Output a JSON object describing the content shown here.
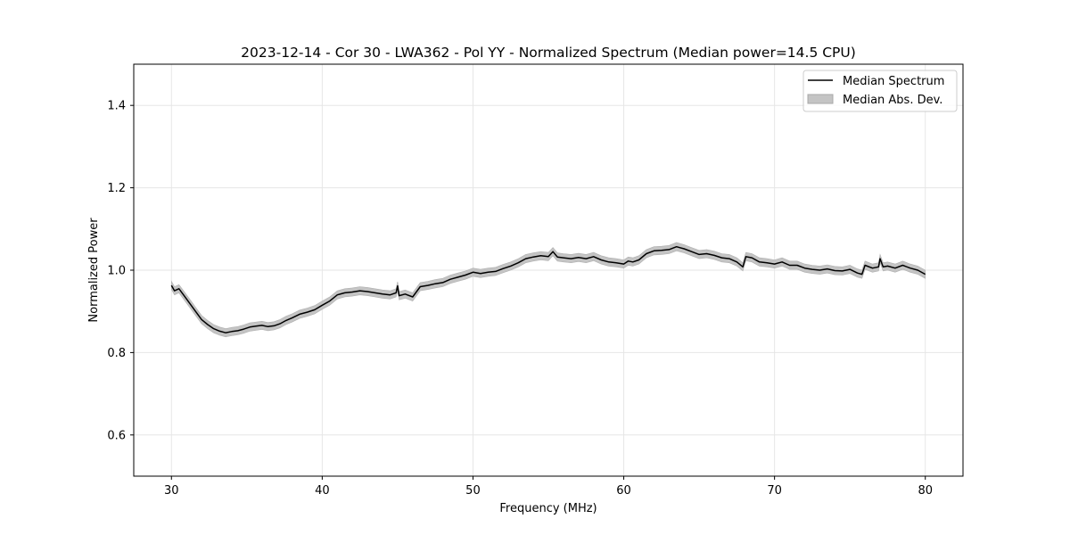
{
  "chart_data": {
    "type": "line",
    "title": "2023-12-14 - Cor 30 - LWA362 - Pol YY - Normalized Spectrum (Median power=14.5 CPU)",
    "xlabel": "Frequency (MHz)",
    "ylabel": "Normalized Power",
    "xlim": [
      27.5,
      82.5
    ],
    "ylim": [
      0.5,
      1.5
    ],
    "xticks": [
      30,
      40,
      50,
      60,
      70,
      80
    ],
    "xtick_labels": [
      "30",
      "40",
      "50",
      "60",
      "70",
      "80"
    ],
    "yticks": [
      0.6,
      0.8,
      1.0,
      1.2,
      1.4
    ],
    "ytick_labels": [
      "0.6",
      "0.8",
      "1.0",
      "1.2",
      "1.4"
    ],
    "grid": true,
    "legend_position": "top-right",
    "legend": [
      {
        "label": "Median Spectrum",
        "kind": "line",
        "color": "#000000"
      },
      {
        "label": "Median Abs. Dev.",
        "kind": "band",
        "color": "#a8a8a8"
      }
    ],
    "series": [
      {
        "name": "Median Spectrum",
        "mad": 0.01,
        "x": [
          30.0,
          30.2,
          30.5,
          30.8,
          31.0,
          31.3,
          31.6,
          32.0,
          32.4,
          32.8,
          33.2,
          33.6,
          34.0,
          34.4,
          34.8,
          35.2,
          35.6,
          36.0,
          36.4,
          36.8,
          37.2,
          37.6,
          38.0,
          38.5,
          39.0,
          39.5,
          40.0,
          40.5,
          41.0,
          41.5,
          42.0,
          42.5,
          43.0,
          43.5,
          44.0,
          44.5,
          44.9,
          45.0,
          45.1,
          45.5,
          46.0,
          46.5,
          47.0,
          47.5,
          48.0,
          48.5,
          49.0,
          49.5,
          50.0,
          50.5,
          51.0,
          51.5,
          52.0,
          52.5,
          53.0,
          53.5,
          54.0,
          54.5,
          55.0,
          55.3,
          55.6,
          56.0,
          56.5,
          57.0,
          57.5,
          58.0,
          58.5,
          59.0,
          59.5,
          60.0,
          60.3,
          60.6,
          61.0,
          61.5,
          62.0,
          62.5,
          63.0,
          63.5,
          64.0,
          64.5,
          65.0,
          65.5,
          66.0,
          66.5,
          67.0,
          67.5,
          67.9,
          68.1,
          68.5,
          69.0,
          69.5,
          70.0,
          70.5,
          71.0,
          71.5,
          72.0,
          72.5,
          73.0,
          73.5,
          74.0,
          74.5,
          75.0,
          75.5,
          75.8,
          76.0,
          76.5,
          76.9,
          77.0,
          77.2,
          77.5,
          78.0,
          78.5,
          79.0,
          79.5,
          80.0
        ],
        "y": [
          0.963,
          0.95,
          0.955,
          0.94,
          0.93,
          0.915,
          0.9,
          0.88,
          0.868,
          0.858,
          0.852,
          0.848,
          0.851,
          0.853,
          0.857,
          0.862,
          0.864,
          0.866,
          0.863,
          0.865,
          0.87,
          0.878,
          0.884,
          0.893,
          0.898,
          0.904,
          0.915,
          0.925,
          0.94,
          0.945,
          0.947,
          0.95,
          0.948,
          0.945,
          0.942,
          0.94,
          0.945,
          0.962,
          0.938,
          0.942,
          0.935,
          0.96,
          0.963,
          0.967,
          0.97,
          0.978,
          0.983,
          0.988,
          0.995,
          0.992,
          0.995,
          0.997,
          1.004,
          1.01,
          1.018,
          1.028,
          1.032,
          1.035,
          1.033,
          1.045,
          1.032,
          1.03,
          1.028,
          1.031,
          1.028,
          1.033,
          1.025,
          1.02,
          1.018,
          1.015,
          1.022,
          1.02,
          1.025,
          1.04,
          1.047,
          1.048,
          1.05,
          1.057,
          1.052,
          1.045,
          1.038,
          1.04,
          1.036,
          1.03,
          1.028,
          1.02,
          1.008,
          1.033,
          1.03,
          1.02,
          1.018,
          1.015,
          1.02,
          1.012,
          1.012,
          1.005,
          1.002,
          1.0,
          1.003,
          0.999,
          0.998,
          1.002,
          0.993,
          0.99,
          1.012,
          1.005,
          1.008,
          1.028,
          1.008,
          1.01,
          1.005,
          1.012,
          1.005,
          1.0,
          0.99
        ]
      }
    ]
  }
}
